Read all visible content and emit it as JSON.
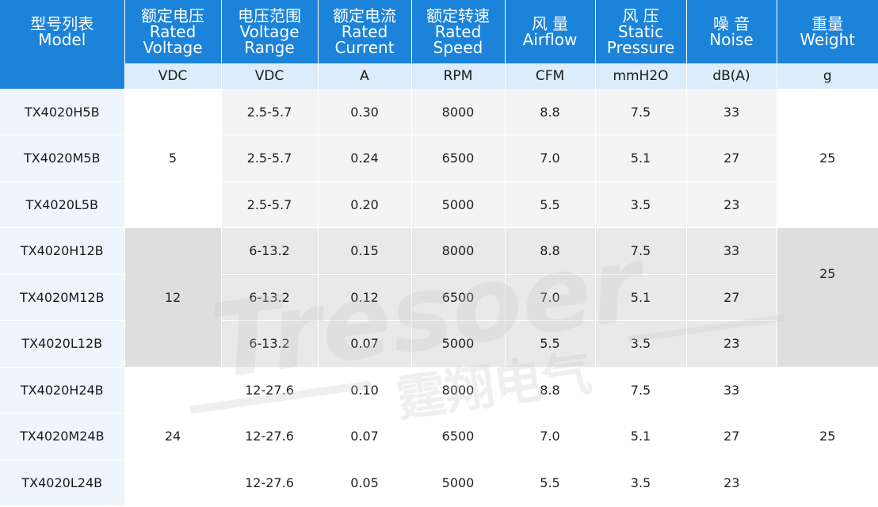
{
  "header": {
    "columns": [
      {
        "lines": [
          "型号列表",
          "Model"
        ]
      },
      {
        "lines": [
          "额定电压",
          "Rated",
          "Voltage"
        ]
      },
      {
        "lines": [
          "电压范围",
          "Voltage",
          "Range"
        ]
      },
      {
        "lines": [
          "额定电流",
          "Rated",
          "Current"
        ]
      },
      {
        "lines": [
          "额定转速",
          "Rated",
          "Speed"
        ]
      },
      {
        "lines": [
          "风 量",
          "Airflow"
        ]
      },
      {
        "lines": [
          "风 压",
          "Static",
          "Pressure"
        ]
      },
      {
        "lines": [
          "噪 音",
          "Noise"
        ]
      },
      {
        "lines": [
          "重量",
          "Weight"
        ]
      }
    ],
    "units": [
      "VDC",
      "VDC",
      "A",
      "RPM",
      "CFM",
      "mmH2O",
      "dB(A)",
      "g"
    ]
  },
  "groups": [
    {
      "rated_voltage": "5",
      "weight": "25",
      "rows": [
        {
          "model": "TX4020H5B",
          "range": "2.5-5.7",
          "current": "0.30",
          "speed": "8000",
          "airflow": "8.8",
          "pressure": "7.5",
          "noise": "33"
        },
        {
          "model": "TX4020M5B",
          "range": "2.5-5.7",
          "current": "0.24",
          "speed": "6500",
          "airflow": "7.0",
          "pressure": "5.1",
          "noise": "27"
        },
        {
          "model": "TX4020L5B",
          "range": "2.5-5.7",
          "current": "0.20",
          "speed": "5000",
          "airflow": "5.5",
          "pressure": "3.5",
          "noise": "23"
        }
      ]
    },
    {
      "rated_voltage": "12",
      "weight": "25",
      "rows": [
        {
          "model": "TX4020H12B",
          "range": "6-13.2",
          "current": "0.15",
          "speed": "8000",
          "airflow": "8.8",
          "pressure": "7.5",
          "noise": "33"
        },
        {
          "model": "TX4020M12B",
          "range": "6-13.2",
          "current": "0.12",
          "speed": "6500",
          "airflow": "7.0",
          "pressure": "5.1",
          "noise": "27"
        },
        {
          "model": "TX4020L12B",
          "range": "6-13.2",
          "current": "0.07",
          "speed": "5000",
          "airflow": "5.5",
          "pressure": "3.5",
          "noise": "23"
        }
      ]
    },
    {
      "rated_voltage": "24",
      "weight": "25",
      "rows": [
        {
          "model": "TX4020H24B",
          "range": "12-27.6",
          "current": "0.10",
          "speed": "8000",
          "airflow": "8.8",
          "pressure": "7.5",
          "noise": "33"
        },
        {
          "model": "TX4020M24B",
          "range": "12-27.6",
          "current": "0.07",
          "speed": "6500",
          "airflow": "7.0",
          "pressure": "5.1",
          "noise": "27"
        },
        {
          "model": "TX4020L24B",
          "range": "12-27.6",
          "current": "0.05",
          "speed": "5000",
          "airflow": "5.5",
          "pressure": "3.5",
          "noise": "23"
        }
      ]
    }
  ],
  "watermark": {
    "brand": "Tresoer",
    "chinese": "霆翔电气"
  },
  "colors": {
    "header_bg": "#1b83d9",
    "unit_bg": "#dcecfb",
    "model_bg": "#eef5fc"
  }
}
